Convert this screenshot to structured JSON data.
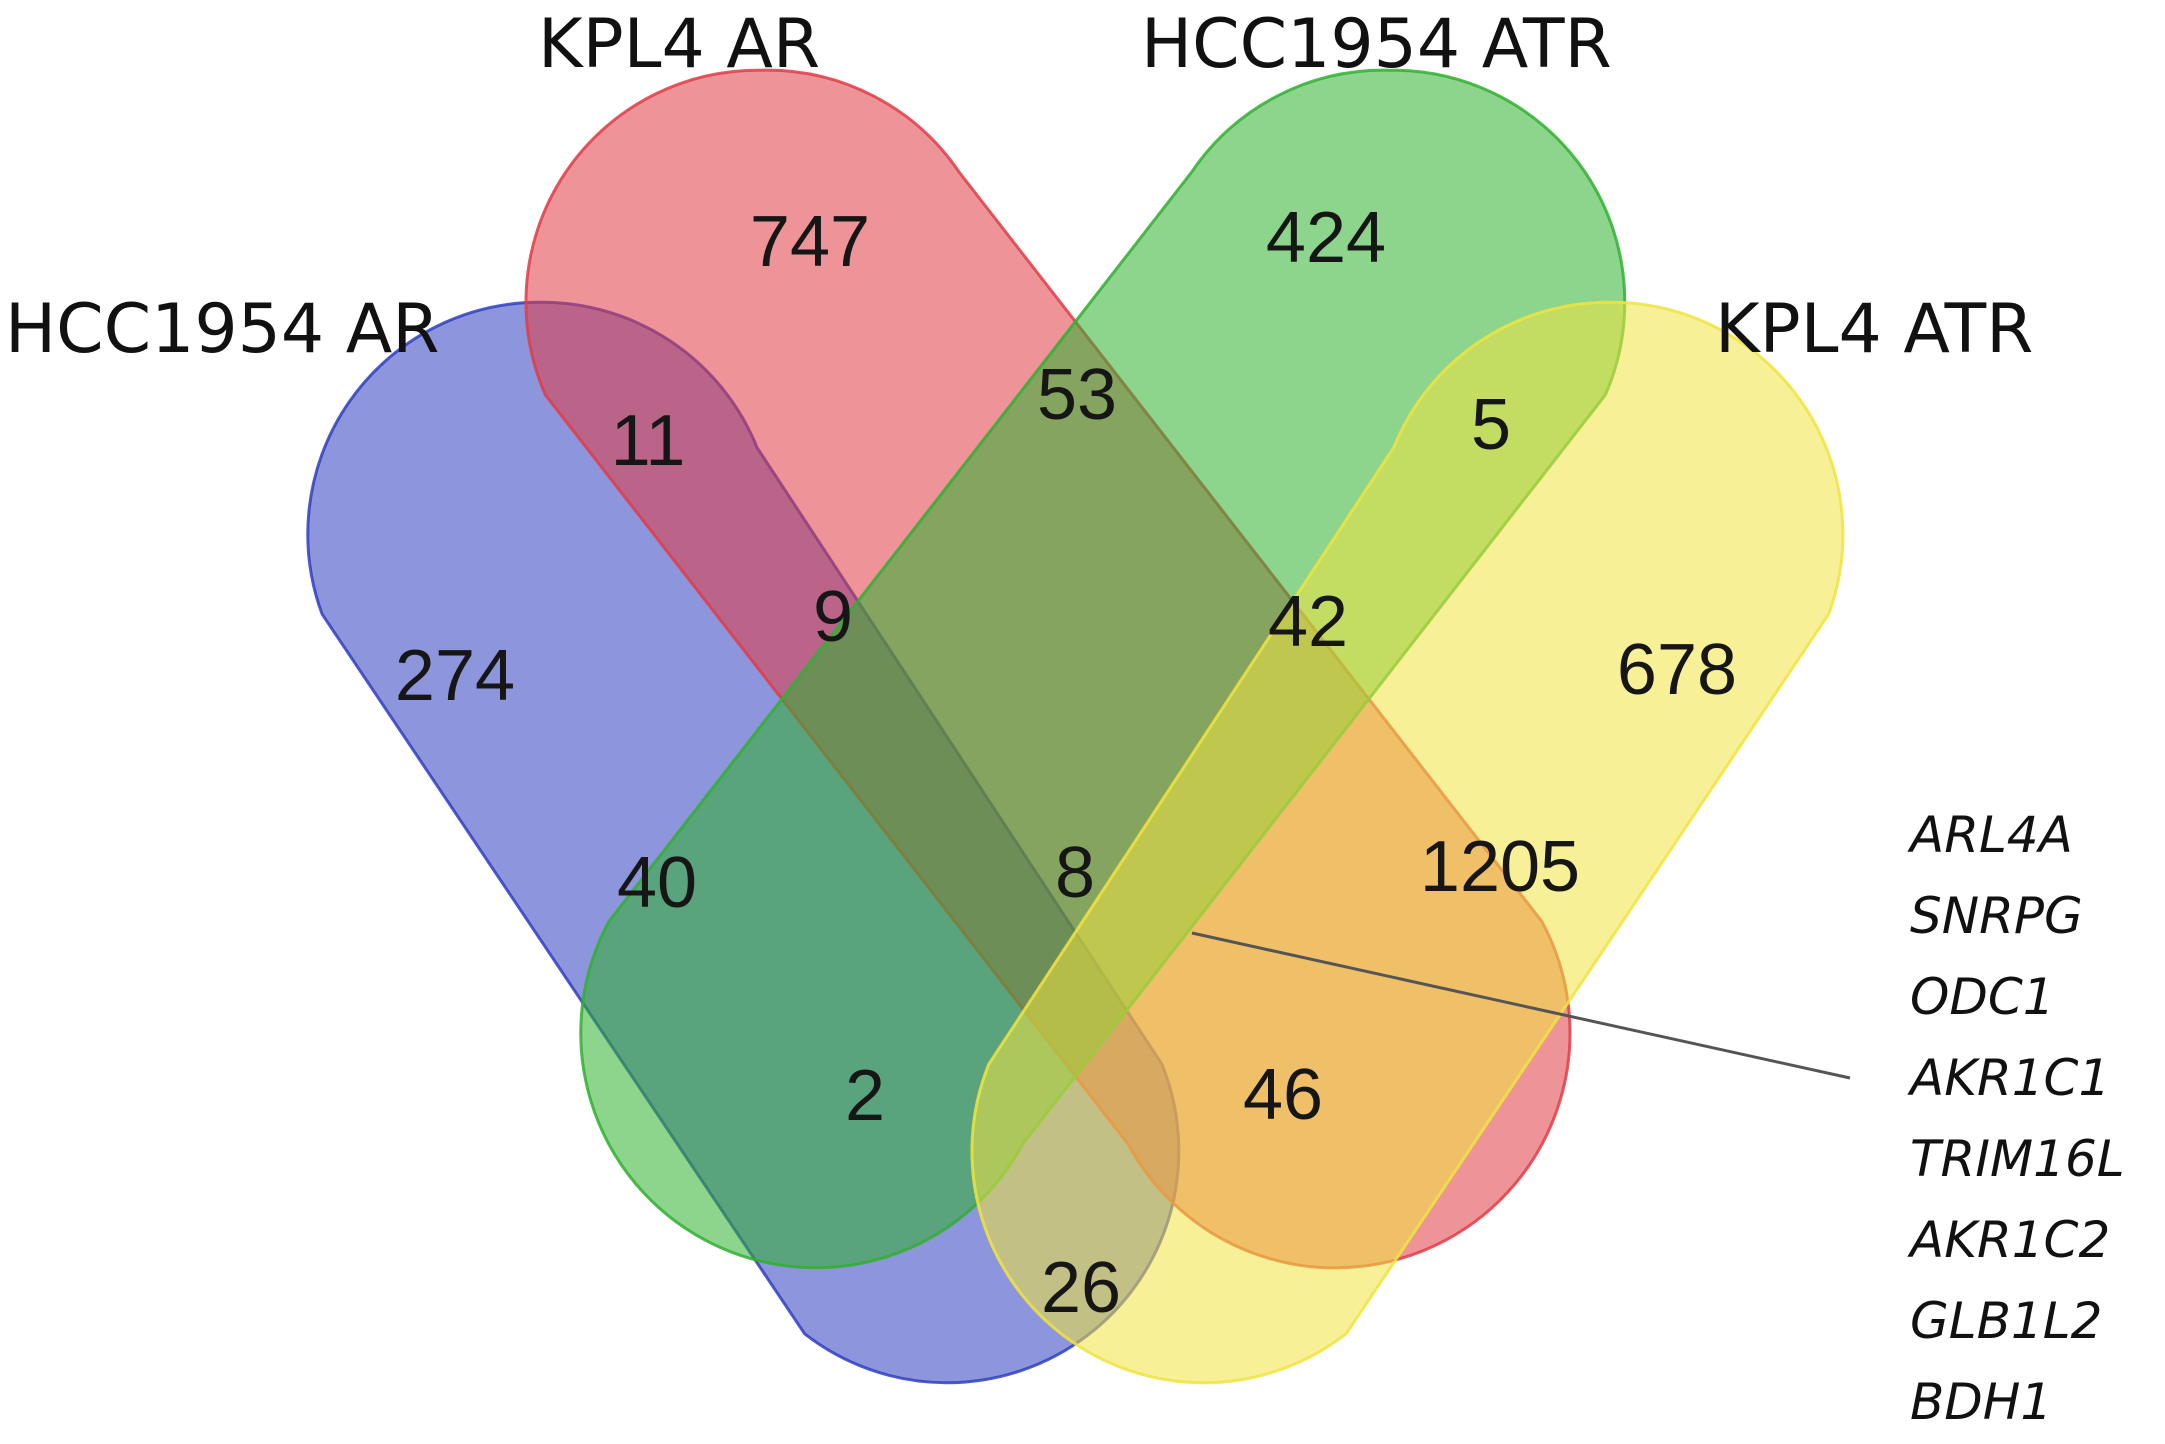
{
  "sets": [
    {
      "id": "hcc1954_ar",
      "label": "HCC1954 AR",
      "color": "#3040c0"
    },
    {
      "id": "kpl4_ar",
      "label": "KPL4 AR",
      "color": "#e03c46"
    },
    {
      "id": "hcc1954_atr",
      "label": "HCC1954 ATR",
      "color": "#30b030"
    },
    {
      "id": "kpl4_atr",
      "label": "KPL4 ATR",
      "color": "#f0e440"
    }
  ],
  "regions": [
    {
      "sets": [
        "kpl4_ar"
      ],
      "count": "747"
    },
    {
      "sets": [
        "hcc1954_atr"
      ],
      "count": "424"
    },
    {
      "sets": [
        "hcc1954_ar"
      ],
      "count": "274"
    },
    {
      "sets": [
        "kpl4_atr"
      ],
      "count": "678"
    },
    {
      "sets": [
        "hcc1954_ar",
        "kpl4_ar"
      ],
      "count": "11"
    },
    {
      "sets": [
        "kpl4_ar",
        "hcc1954_atr"
      ],
      "count": "53"
    },
    {
      "sets": [
        "hcc1954_atr",
        "kpl4_atr"
      ],
      "count": "5"
    },
    {
      "sets": [
        "hcc1954_ar",
        "kpl4_ar",
        "hcc1954_atr"
      ],
      "count": "9"
    },
    {
      "sets": [
        "kpl4_ar",
        "hcc1954_atr",
        "kpl4_atr"
      ],
      "count": "42"
    },
    {
      "sets": [
        "hcc1954_ar",
        "hcc1954_atr"
      ],
      "count": "40"
    },
    {
      "sets": [
        "hcc1954_ar",
        "kpl4_ar",
        "hcc1954_atr",
        "kpl4_atr"
      ],
      "count": "8"
    },
    {
      "sets": [
        "kpl4_ar",
        "kpl4_atr"
      ],
      "count": "1205"
    },
    {
      "sets": [
        "hcc1954_ar",
        "hcc1954_atr",
        "kpl4_atr"
      ],
      "count": "2"
    },
    {
      "sets": [
        "hcc1954_ar",
        "kpl4_ar",
        "kpl4_atr"
      ],
      "count": "46"
    },
    {
      "sets": [
        "hcc1954_ar",
        "kpl4_atr"
      ],
      "count": "26"
    }
  ],
  "callout": {
    "region": "all-four",
    "genes": [
      "ARL4A",
      "SNRPG",
      "ODC1",
      "AKR1C1",
      "TRIM16L",
      "AKR1C2",
      "GLB1L2",
      "BDH1"
    ]
  }
}
